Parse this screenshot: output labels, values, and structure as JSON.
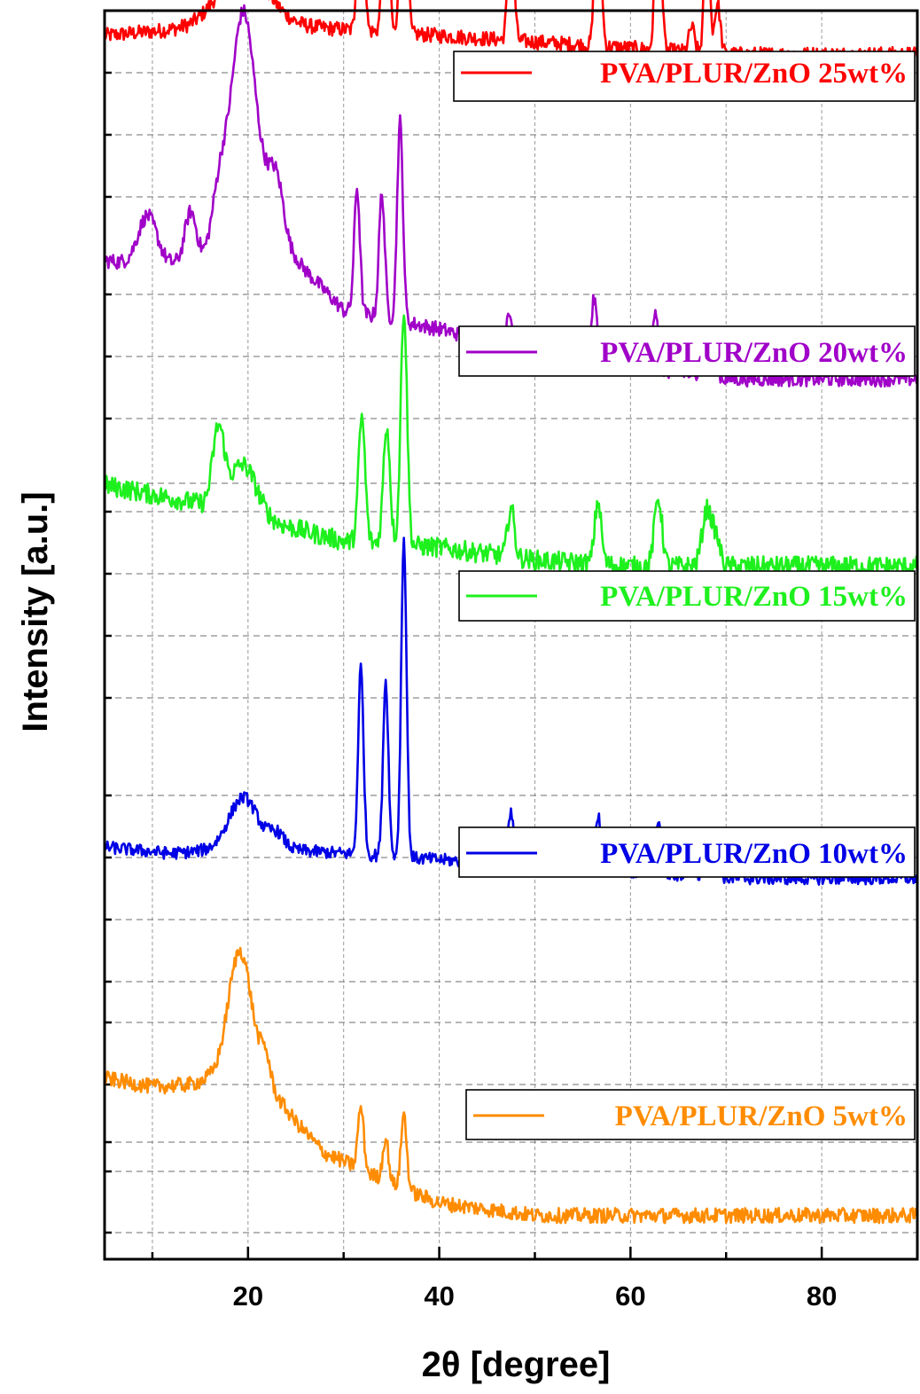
{
  "chart_data": {
    "type": "line",
    "xlabel": "2θ [degree]",
    "ylabel": "Intensity [a.u.]",
    "xlim": [
      5,
      90
    ],
    "xticks": [
      20,
      40,
      60,
      80
    ],
    "y_ticks_labeled": false,
    "grid": true,
    "legend_placement": "right of each curve",
    "series": [
      {
        "name": "PVA/PLUR/ZnO 25wt%",
        "color": "#ff0000",
        "baseline": [
          [
            5,
            0.98
          ],
          [
            20,
            0.99
          ],
          [
            30,
            0.985
          ],
          [
            50,
            0.975
          ],
          [
            70,
            0.965
          ],
          [
            90,
            0.965
          ]
        ],
        "peaks": [
          [
            19.5,
            0.045,
            2.5
          ],
          [
            31.8,
            0.18,
            0.3
          ],
          [
            34.4,
            0.15,
            0.3
          ],
          [
            36.3,
            0.33,
            0.28
          ],
          [
            47.5,
            0.105,
            0.3
          ],
          [
            56.6,
            0.15,
            0.3
          ],
          [
            62.9,
            0.14,
            0.3
          ],
          [
            66.4,
            0.02,
            0.3
          ],
          [
            68.0,
            0.1,
            0.28
          ],
          [
            69.1,
            0.04,
            0.3
          ]
        ],
        "noise": 0.006
      },
      {
        "name": "PVA/PLUR/ZnO 20wt%",
        "color": "#a000c8",
        "baseline": [
          [
            5,
            0.8
          ],
          [
            10,
            0.795
          ],
          [
            15,
            0.8
          ],
          [
            25,
            0.8
          ],
          [
            30,
            0.76
          ],
          [
            40,
            0.745
          ],
          [
            50,
            0.725
          ],
          [
            60,
            0.715
          ],
          [
            70,
            0.705
          ],
          [
            90,
            0.705
          ]
        ],
        "peaks": [
          [
            9.5,
            0.04,
            1.0
          ],
          [
            14.0,
            0.04,
            0.6
          ],
          [
            17.0,
            0.05,
            0.8
          ],
          [
            19.3,
            0.16,
            1.2
          ],
          [
            20.8,
            0.06,
            1.5
          ],
          [
            23.0,
            0.05,
            0.8
          ],
          [
            31.4,
            0.1,
            0.3
          ],
          [
            34.0,
            0.1,
            0.3
          ],
          [
            35.9,
            0.16,
            0.3
          ],
          [
            47.3,
            0.03,
            0.3
          ],
          [
            56.2,
            0.05,
            0.3
          ],
          [
            62.6,
            0.05,
            0.3
          ],
          [
            67.6,
            0.03,
            0.3
          ],
          [
            68.8,
            0.012,
            0.3
          ]
        ],
        "noise": 0.006
      },
      {
        "name": "PVA/PLUR/ZnO 15wt%",
        "color": "#1ef01e",
        "baseline": [
          [
            5,
            0.62
          ],
          [
            15,
            0.605
          ],
          [
            25,
            0.585
          ],
          [
            30,
            0.575
          ],
          [
            40,
            0.57
          ],
          [
            50,
            0.56
          ],
          [
            60,
            0.555
          ],
          [
            70,
            0.555
          ],
          [
            90,
            0.555
          ]
        ],
        "peaks": [
          [
            16.9,
            0.06,
            0.6
          ],
          [
            19.5,
            0.04,
            1.4
          ],
          [
            31.9,
            0.1,
            0.35
          ],
          [
            34.5,
            0.095,
            0.35
          ],
          [
            36.3,
            0.19,
            0.33
          ],
          [
            47.5,
            0.04,
            0.35
          ],
          [
            56.6,
            0.05,
            0.35
          ],
          [
            62.9,
            0.055,
            0.4
          ],
          [
            68.0,
            0.045,
            0.5
          ],
          [
            69.0,
            0.02,
            0.4
          ]
        ],
        "noise": 0.008
      },
      {
        "name": "PVA/PLUR/ZnO 10wt%",
        "color": "#0000e6",
        "baseline": [
          [
            5,
            0.33
          ],
          [
            12,
            0.325
          ],
          [
            20,
            0.33
          ],
          [
            30,
            0.325
          ],
          [
            40,
            0.32
          ],
          [
            50,
            0.315
          ],
          [
            60,
            0.31
          ],
          [
            70,
            0.305
          ],
          [
            90,
            0.305
          ]
        ],
        "peaks": [
          [
            19.5,
            0.04,
            1.5
          ],
          [
            23.0,
            0.012,
            0.8
          ],
          [
            31.8,
            0.15,
            0.28
          ],
          [
            34.4,
            0.14,
            0.28
          ],
          [
            36.3,
            0.255,
            0.28
          ],
          [
            47.5,
            0.04,
            0.3
          ],
          [
            56.6,
            0.045,
            0.3
          ],
          [
            62.9,
            0.04,
            0.3
          ],
          [
            66.4,
            0.008,
            0.3
          ],
          [
            68.0,
            0.035,
            0.28
          ],
          [
            69.1,
            0.015,
            0.3
          ]
        ],
        "noise": 0.005
      },
      {
        "name": "PVA/PLUR/ZnO 5wt%",
        "color": "#ff8c00",
        "baseline": [
          [
            5,
            0.145
          ],
          [
            10,
            0.138
          ],
          [
            14,
            0.14
          ],
          [
            18,
            0.15
          ],
          [
            22,
            0.14
          ],
          [
            25,
            0.11
          ],
          [
            28,
            0.085
          ],
          [
            31,
            0.075
          ],
          [
            35,
            0.06
          ],
          [
            40,
            0.045
          ],
          [
            45,
            0.04
          ],
          [
            50,
            0.035
          ],
          [
            60,
            0.035
          ],
          [
            90,
            0.035
          ]
        ],
        "peaks": [
          [
            19.2,
            0.1,
            1.2
          ],
          [
            21.8,
            0.02,
            0.5
          ],
          [
            31.8,
            0.05,
            0.3
          ],
          [
            34.4,
            0.035,
            0.3
          ],
          [
            36.3,
            0.06,
            0.3
          ]
        ],
        "noise": 0.006
      }
    ]
  }
}
